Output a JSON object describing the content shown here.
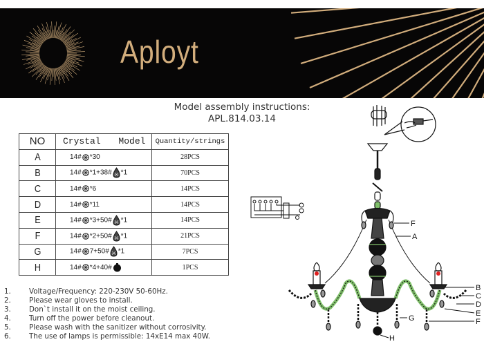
{
  "brand": {
    "name": "Aployt",
    "gold": "#d2ad7c",
    "background": "#070606"
  },
  "title": {
    "line1": "Model assembly instructions:",
    "line2": "APL.814.03.14"
  },
  "table": {
    "headers": [
      "NO",
      "Crystal Model",
      "Quantity/strings"
    ],
    "rows": [
      {
        "no": "A",
        "model": [
          {
            "t": "14#"
          },
          {
            "i": "round"
          },
          {
            "t": "*30"
          }
        ],
        "qty": "28PCS"
      },
      {
        "no": "B",
        "model": [
          {
            "t": "14#"
          },
          {
            "i": "round"
          },
          {
            "t": "*1+38#"
          },
          {
            "i": "drop"
          },
          {
            "t": "*1"
          }
        ],
        "qty": "70PCS"
      },
      {
        "no": "C",
        "model": [
          {
            "t": "14#"
          },
          {
            "i": "round"
          },
          {
            "t": "*6"
          }
        ],
        "qty": "14PCS"
      },
      {
        "no": "D",
        "model": [
          {
            "t": "14#"
          },
          {
            "i": "round"
          },
          {
            "t": "*11"
          }
        ],
        "qty": "14PCS"
      },
      {
        "no": "E",
        "model": [
          {
            "t": "14#"
          },
          {
            "i": "round"
          },
          {
            "t": "*3+50#"
          },
          {
            "i": "drop"
          },
          {
            "t": "*1"
          }
        ],
        "qty": "14PCS"
      },
      {
        "no": "F",
        "model": [
          {
            "t": "14#"
          },
          {
            "i": "round"
          },
          {
            "t": "*2+50#"
          },
          {
            "i": "drop"
          },
          {
            "t": "*1"
          }
        ],
        "qty": "21PCS"
      },
      {
        "no": "G",
        "model": [
          {
            "t": "14#"
          },
          {
            "i": "round"
          },
          {
            "t": "7+50#"
          },
          {
            "i": "drop"
          },
          {
            "t": "*1"
          }
        ],
        "qty": "7PCS"
      },
      {
        "no": "H",
        "model": [
          {
            "t": "14#"
          },
          {
            "i": "round"
          },
          {
            "t": "*4+40#"
          },
          {
            "i": "ball"
          }
        ],
        "qty": "1PCS"
      }
    ]
  },
  "notes": [
    {
      "n": "1.",
      "text": "Voltage/Frequency: 220-230V 50-60Hz."
    },
    {
      "n": "2.",
      "text": "Please wear gloves to install."
    },
    {
      "n": "3.",
      "text": "Don`t install it on the moist ceiling."
    },
    {
      "n": "4.",
      "text": "Turn off the power before cleanout."
    },
    {
      "n": "5.",
      "text": "Please wash with the sanitizer without corrosivity."
    },
    {
      "n": "6.",
      "text": "The use of lamps is permissible: 14xE14 max 40W."
    }
  ],
  "diagram": {
    "labels": {
      "F1": "F",
      "A": "A",
      "B": "B",
      "C": "C",
      "D": "D",
      "E": "E",
      "F2": "F",
      "G": "G",
      "H": "H"
    },
    "accent_green": "#7fbf6a",
    "bulb_red": "#e02020"
  }
}
